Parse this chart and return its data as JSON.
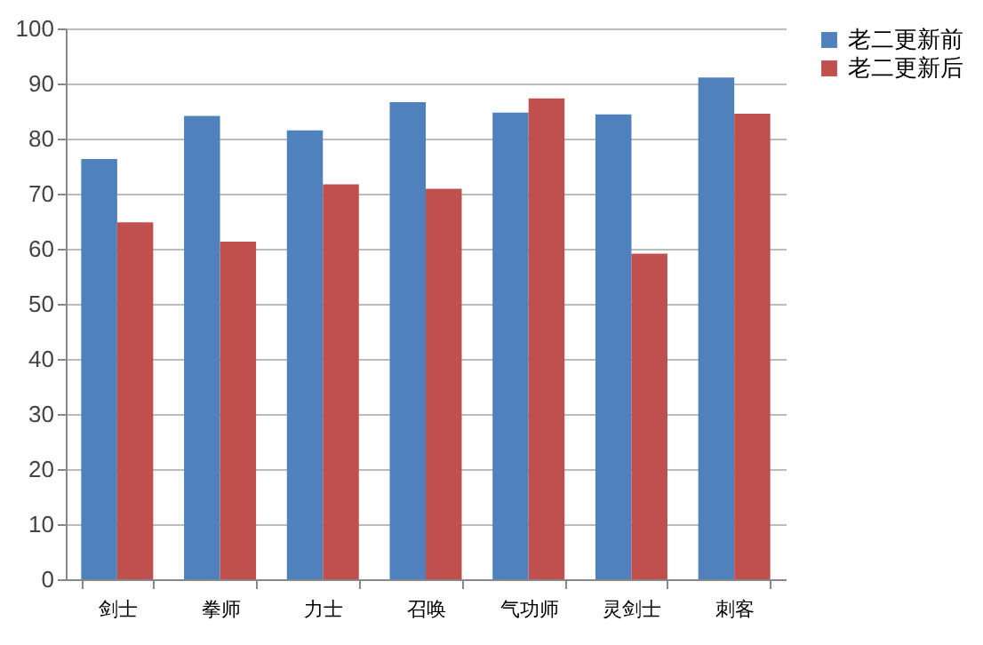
{
  "chart_data": {
    "type": "bar",
    "categories": [
      "剑士",
      "拳师",
      "力士",
      "召唤",
      "气功师",
      "灵剑士",
      "刺客"
    ],
    "series": [
      {
        "name": "老二更新前",
        "color": "#4f81bd",
        "values": [
          76.3,
          84.1,
          81.5,
          86.6,
          84.7,
          84.4,
          91.1
        ]
      },
      {
        "name": "老二更新后",
        "color": "#c0504d",
        "values": [
          64.8,
          61.3,
          71.7,
          70.9,
          87.3,
          59.1,
          84.5
        ]
      }
    ],
    "ylim": [
      0,
      100
    ],
    "yticks": [
      0,
      10,
      20,
      30,
      40,
      50,
      60,
      70,
      80,
      90,
      100
    ],
    "grid": "y",
    "legend": "right"
  }
}
